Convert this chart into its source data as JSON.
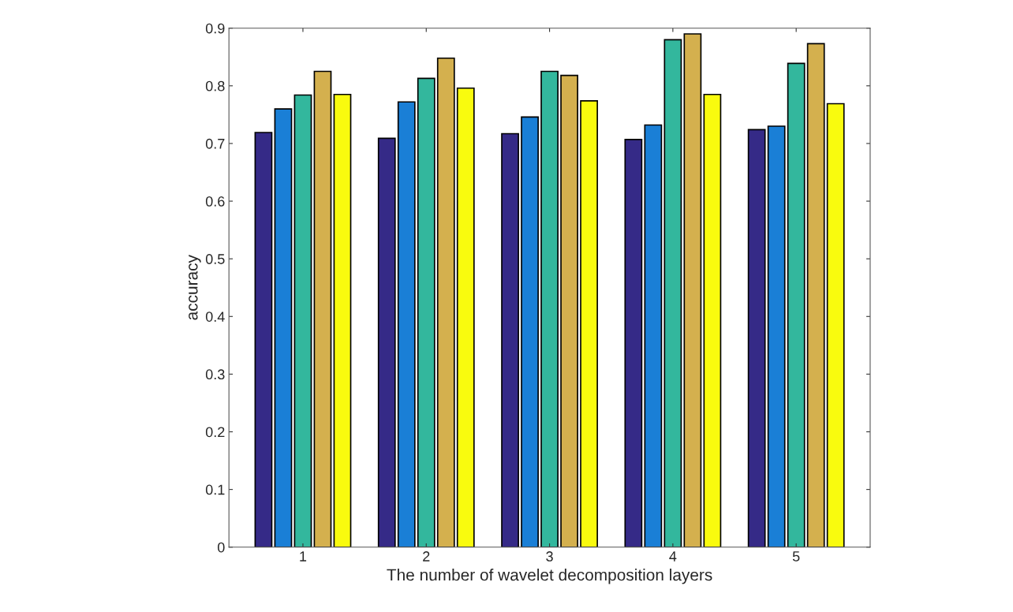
{
  "chart_data": {
    "type": "bar",
    "xlabel": "The number of wavelet decomposition layers",
    "ylabel": "accuracy",
    "categories": [
      "1",
      "2",
      "3",
      "4",
      "5"
    ],
    "series": [
      {
        "color": "#352a87",
        "values": [
          0.719,
          0.709,
          0.717,
          0.707,
          0.724
        ]
      },
      {
        "color": "#1a7fd6",
        "values": [
          0.76,
          0.772,
          0.746,
          0.732,
          0.73
        ]
      },
      {
        "color": "#33b79d",
        "values": [
          0.784,
          0.813,
          0.825,
          0.88,
          0.839
        ]
      },
      {
        "color": "#d4b04e",
        "values": [
          0.825,
          0.848,
          0.818,
          0.89,
          0.873
        ]
      },
      {
        "color": "#f9fb0e",
        "values": [
          0.785,
          0.796,
          0.774,
          0.785,
          0.769
        ]
      }
    ],
    "ylim": [
      0,
      0.9
    ],
    "yticks": [
      0,
      0.1,
      0.2,
      0.3,
      0.4,
      0.5,
      0.6,
      0.7,
      0.8,
      0.9
    ],
    "grid": false
  }
}
